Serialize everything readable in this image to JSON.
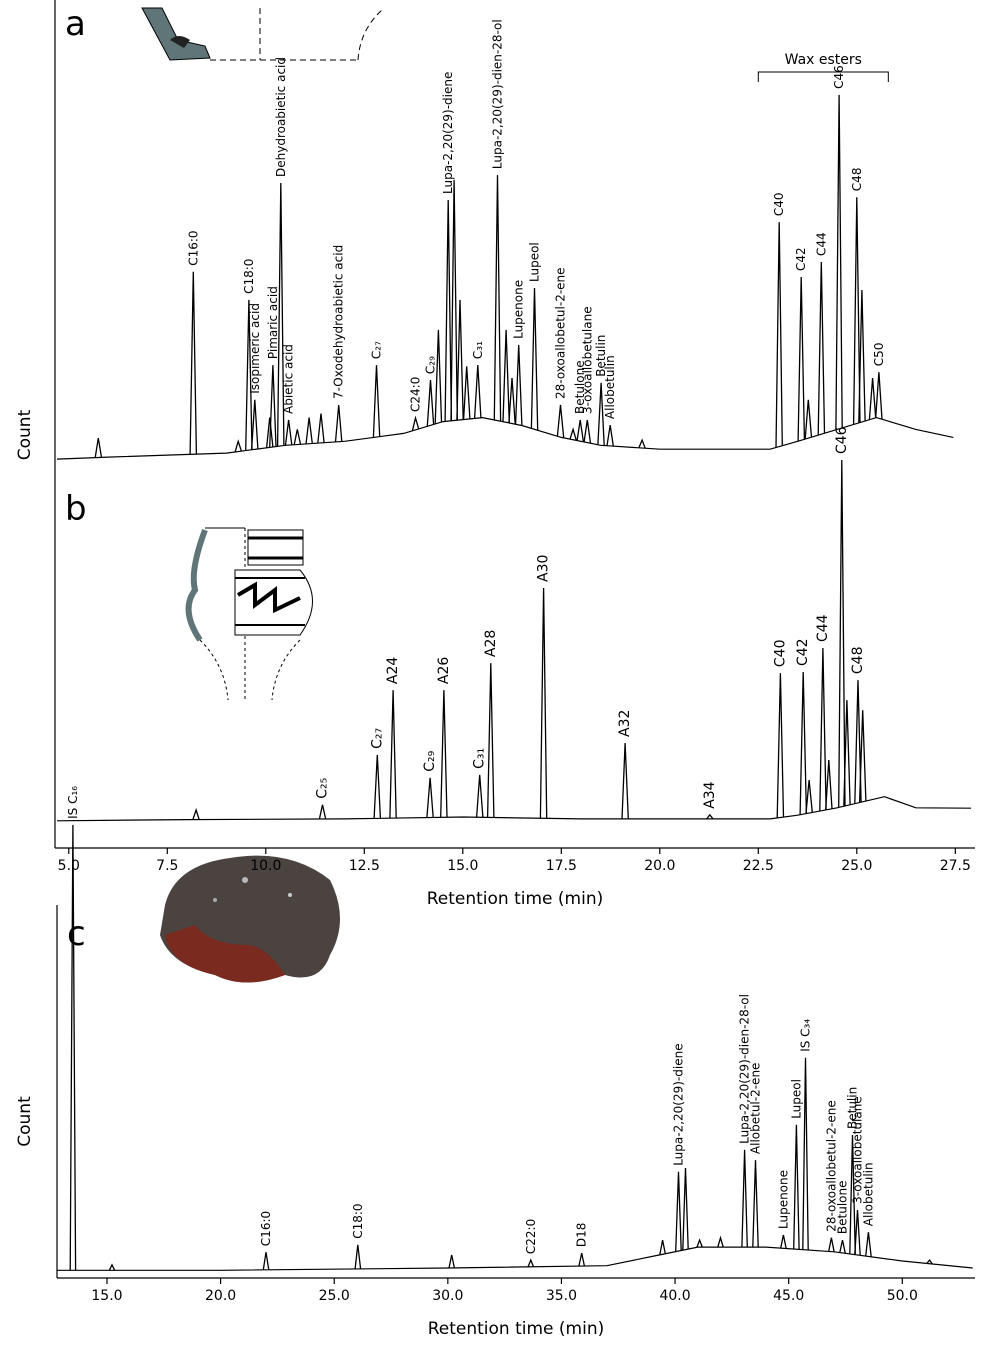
{
  "chart_data": [
    {
      "type": "chromatogram",
      "panel": "a",
      "ylabel": "Count",
      "color": "#000000",
      "xlim": [
        4.65,
        28.0
      ],
      "ylim": [
        0,
        100
      ],
      "baseline": {
        "x": [
          4.7,
          6,
          7.5,
          9,
          10.5,
          12,
          13.5,
          14.5,
          15.5,
          16.5,
          17.5,
          18.5,
          20,
          21.5,
          22.8,
          23.5,
          24.5,
          25.5,
          26.5,
          27.45
        ],
        "values": [
          1.5,
          2,
          2.5,
          3,
          5,
          6,
          8,
          11,
          12,
          10,
          7,
          5,
          4,
          4,
          4,
          6,
          9,
          12,
          9,
          7
        ]
      },
      "peaks": [
        {
          "label": "C16:0",
          "x": 8.16,
          "y": 48.9
        },
        {
          "label": "C18:0",
          "x": 9.57,
          "y": 41.8
        },
        {
          "label": "Isopimeric acid",
          "x": 9.72,
          "y": 16.5
        },
        {
          "label": "Pimaric acid",
          "x": 10.18,
          "y": 25.3
        },
        {
          "label": "Dehydroabietic acid",
          "x": 10.38,
          "y": 71.4
        },
        {
          "label": "Abietic acid",
          "x": 10.58,
          "y": 11.4
        },
        {
          "label": "7-Oxodehydroabietic acid",
          "x": 11.85,
          "y": 15.2
        },
        {
          "label": "C₂₇",
          "x": 12.81,
          "y": 25.3
        },
        {
          "label": "C24:0",
          "x": 13.8,
          "y": 11.9
        },
        {
          "label": "C₂₉",
          "x": 14.18,
          "y": 21.5
        },
        {
          "label": "Lupa-2,20(29)-diene",
          "x": 14.63,
          "y": 67.1
        },
        {
          "label": "C₃₁",
          "x": 15.38,
          "y": 25.3
        },
        {
          "label": "Lupa-2,20(29)-dien-28-ol",
          "x": 15.88,
          "y": 73.4
        },
        {
          "label": "Lupenone",
          "x": 16.42,
          "y": 30.4
        },
        {
          "label": "Lupeol",
          "x": 16.82,
          "y": 44.8
        },
        {
          "label": "28-oxoallobetul-2-ene",
          "x": 17.48,
          "y": 15.2
        },
        {
          "label": "Betulone",
          "x": 17.98,
          "y": 11.4
        },
        {
          "label": "3-oxoallobetulane",
          "x": 18.16,
          "y": 11.4
        },
        {
          "label": "Betulin",
          "x": 18.51,
          "y": 20.8
        },
        {
          "label": "Allobetulin",
          "x": 18.74,
          "y": 10.1
        },
        {
          "label": "C40",
          "x": 23.03,
          "y": 61.5
        },
        {
          "label": "C42",
          "x": 23.59,
          "y": 47.6
        },
        {
          "label": "C44",
          "x": 24.1,
          "y": 51.4
        },
        {
          "label": "C46",
          "x": 24.55,
          "y": 93.7
        },
        {
          "label": "C48",
          "x": 25.0,
          "y": 67.8
        },
        {
          "label": "C50",
          "x": 25.56,
          "y": 23.5
        }
      ],
      "minor_peaks": [
        {
          "x": 5.75,
          "y": 6.8
        },
        {
          "x": 9.3,
          "y": 6
        },
        {
          "x": 10.1,
          "y": 12
        },
        {
          "x": 10.8,
          "y": 9
        },
        {
          "x": 11.1,
          "y": 12
        },
        {
          "x": 11.4,
          "y": 13
        },
        {
          "x": 14.38,
          "y": 34.2
        },
        {
          "x": 14.78,
          "y": 72.2
        },
        {
          "x": 14.93,
          "y": 41.8
        },
        {
          "x": 15.1,
          "y": 25
        },
        {
          "x": 16.1,
          "y": 34.2
        },
        {
          "x": 16.25,
          "y": 22
        },
        {
          "x": 17.8,
          "y": 9
        },
        {
          "x": 19.55,
          "y": 6.3
        },
        {
          "x": 23.77,
          "y": 16.5
        },
        {
          "x": 25.13,
          "y": 44.3
        },
        {
          "x": 25.4,
          "y": 22
        }
      ],
      "annotations": [
        {
          "text": "Wax esters",
          "x": [
            22.5,
            25.8
          ]
        }
      ]
    },
    {
      "type": "chromatogram",
      "panel": "b",
      "xlabel": "Retention time (min)",
      "color": "#000000",
      "xlim": [
        4.65,
        28.0
      ],
      "ylim": [
        0,
        100
      ],
      "xticks": [
        {
          "value": 5,
          "label": "5.0"
        },
        {
          "value": 7.5,
          "label": "7.5"
        },
        {
          "value": 10,
          "label": "10.0"
        },
        {
          "value": 12.5,
          "label": "12.5"
        },
        {
          "value": 15,
          "label": "15.0"
        },
        {
          "value": 17.5,
          "label": "17.5"
        },
        {
          "value": 20,
          "label": "20.0"
        },
        {
          "value": 22.5,
          "label": "22.5"
        },
        {
          "value": 25,
          "label": "25.0"
        },
        {
          "value": 27.5,
          "label": "27.5"
        }
      ],
      "baseline": {
        "x": [
          4.7,
          8,
          12,
          15,
          18,
          21,
          22.8,
          23.5,
          24.5,
          25.7,
          26.5,
          27.9
        ],
        "values": [
          2.5,
          2.8,
          3,
          3.5,
          3,
          3,
          3,
          4,
          6,
          9,
          6,
          5.9
        ]
      },
      "peaks": [
        {
          "label": "C₂₅",
          "x": 11.44,
          "y": 6.8
        },
        {
          "label": "C₂₇",
          "x": 12.83,
          "y": 20.3
        },
        {
          "label": "A24",
          "x": 13.23,
          "y": 37.8
        },
        {
          "label": "C₂₉",
          "x": 14.17,
          "y": 14.1
        },
        {
          "label": "A26",
          "x": 14.52,
          "y": 37.8
        },
        {
          "label": "C₃₁",
          "x": 15.43,
          "y": 14.9
        },
        {
          "label": "A28",
          "x": 15.71,
          "y": 45.1
        },
        {
          "label": "A30",
          "x": 17.05,
          "y": 65.4
        },
        {
          "label": "A32",
          "x": 19.12,
          "y": 23.5
        },
        {
          "label": "A34",
          "x": 21.27,
          "y": 4.1
        },
        {
          "label": "C40",
          "x": 23.06,
          "y": 42.4
        },
        {
          "label": "C42",
          "x": 23.64,
          "y": 42.7
        },
        {
          "label": "C44",
          "x": 24.14,
          "y": 49.2
        },
        {
          "label": "C46",
          "x": 24.62,
          "y": 100
        },
        {
          "label": "C48",
          "x": 25.03,
          "y": 40.5
        }
      ],
      "minor_peaks": [
        {
          "x": 8.23,
          "y": 5.4
        },
        {
          "x": 23.79,
          "y": 13.5
        },
        {
          "x": 24.29,
          "y": 18.9
        },
        {
          "x": 24.75,
          "y": 35.1
        },
        {
          "x": 25.15,
          "y": 32.4
        }
      ]
    },
    {
      "type": "chromatogram",
      "panel": "c",
      "ylabel": "Count",
      "xlabel": "Retention time (min)",
      "color": "#000000",
      "xlim": [
        12.8,
        53.2
      ],
      "ylim": [
        0,
        100
      ],
      "xticks": [
        {
          "value": 15,
          "label": "15.0"
        },
        {
          "value": 20,
          "label": "20.0"
        },
        {
          "value": 25,
          "label": "25.0"
        },
        {
          "value": 30,
          "label": "30.0"
        },
        {
          "value": 35,
          "label": "35.0"
        },
        {
          "value": 40,
          "label": "40.0"
        },
        {
          "value": 45,
          "label": "45.0"
        },
        {
          "value": 50,
          "label": "50.0"
        }
      ],
      "baseline": {
        "x": [
          12.8,
          13.2,
          20,
          30,
          37,
          39,
          41,
          44,
          47,
          50,
          53.1
        ],
        "values": [
          1,
          1,
          1,
          1.5,
          2,
          4,
          6,
          6,
          5,
          3,
          1.5
        ]
      },
      "peaks": [
        {
          "label": "IS C₁₆",
          "x": 13.5,
          "y": 96.8
        },
        {
          "label": "C16:0",
          "x": 22.0,
          "y": 4.9
        },
        {
          "label": "C18:0",
          "x": 26.04,
          "y": 6.5
        },
        {
          "label": "C22:0",
          "x": 33.65,
          "y": 3.2
        },
        {
          "label": "D18",
          "x": 35.89,
          "y": 4.7
        },
        {
          "label": "Lupa-2,20(29)-diene",
          "x": 40.15,
          "y": 22.2
        },
        {
          "label": "Lupa-2,20(29)-dien-28-ol",
          "x": 43.06,
          "y": 26.9
        },
        {
          "label": "Allobetul-2-ene",
          "x": 43.54,
          "y": 24.7
        },
        {
          "label": "Lupenone",
          "x": 44.77,
          "y": 8.6
        },
        {
          "label": "Lupeol",
          "x": 45.34,
          "y": 32.3
        },
        {
          "label": "IS C₃₄",
          "x": 45.74,
          "y": 46.7
        },
        {
          "label": "28-oxoallobetul-2-ene",
          "x": 46.88,
          "y": 8.0
        },
        {
          "label": "Betulone",
          "x": 47.37,
          "y": 7.5
        },
        {
          "label": "Betulin",
          "x": 47.81,
          "y": 30.1
        },
        {
          "label": "3-oxoallobetulane",
          "x": 48.03,
          "y": 14.0
        },
        {
          "label": "Allobetulin",
          "x": 48.51,
          "y": 9.2
        }
      ],
      "minor_peaks": [
        {
          "x": 15.22,
          "y": 2.2
        },
        {
          "x": 30.17,
          "y": 4.3
        },
        {
          "x": 39.45,
          "y": 7.5
        },
        {
          "x": 40.46,
          "y": 23
        },
        {
          "x": 41.08,
          "y": 7.5
        },
        {
          "x": 42,
          "y": 8
        },
        {
          "x": 51.2,
          "y": 3.2
        }
      ]
    }
  ]
}
